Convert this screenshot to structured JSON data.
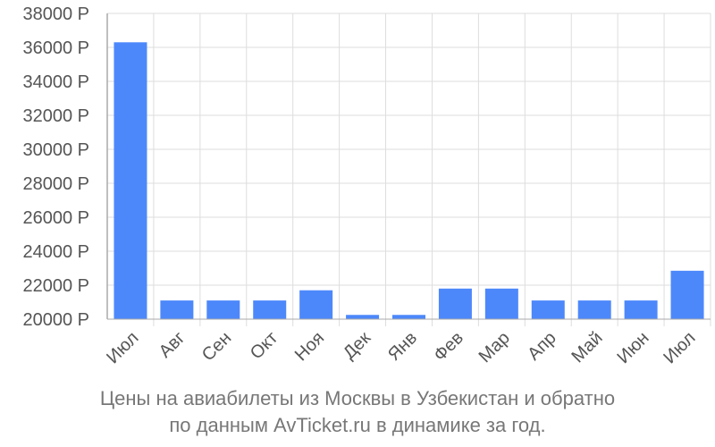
{
  "chart_data": {
    "type": "bar",
    "categories": [
      "Июл",
      "Авг",
      "Сен",
      "Окт",
      "Ноя",
      "Дек",
      "Янв",
      "Фев",
      "Мар",
      "Апр",
      "Май",
      "Июн",
      "Июл"
    ],
    "values": [
      36300,
      21100,
      21100,
      21100,
      21700,
      20250,
      20250,
      21800,
      21800,
      21100,
      21100,
      21100,
      22850
    ],
    "ylim": [
      20000,
      38000
    ],
    "yticks": [
      20000,
      22000,
      24000,
      26000,
      28000,
      30000,
      32000,
      34000,
      36000,
      38000
    ],
    "ytick_labels": [
      "20000 Р",
      "22000 Р",
      "24000 Р",
      "26000 Р",
      "28000 Р",
      "30000 Р",
      "32000 Р",
      "34000 Р",
      "36000 Р",
      "38000 Р"
    ],
    "grid": true,
    "bar_color": "#4d88fb",
    "grid_color": "#dddddd",
    "axis_color": "#aaaaaa"
  },
  "caption": {
    "line1": "Цены на авиабилеты из Москвы в Узбекистан и обратно",
    "line2": "по данным AvTicket.ru в динамике за год."
  }
}
